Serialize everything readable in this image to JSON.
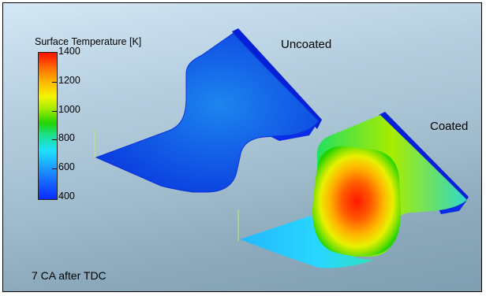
{
  "legend": {
    "title": "Surface Temperature [K]",
    "ticks": [
      "1400",
      "1200",
      "1000",
      "800",
      "600",
      "400"
    ],
    "range": [
      400,
      1400
    ],
    "colormap": [
      "#0a2bff",
      "#1de0ff",
      "#22d400",
      "#f4f400",
      "#ff7a00",
      "#ff1000"
    ]
  },
  "labels": {
    "uncoated": "Uncoated",
    "coated": "Coated"
  },
  "caption": "7 CA after TDC"
}
